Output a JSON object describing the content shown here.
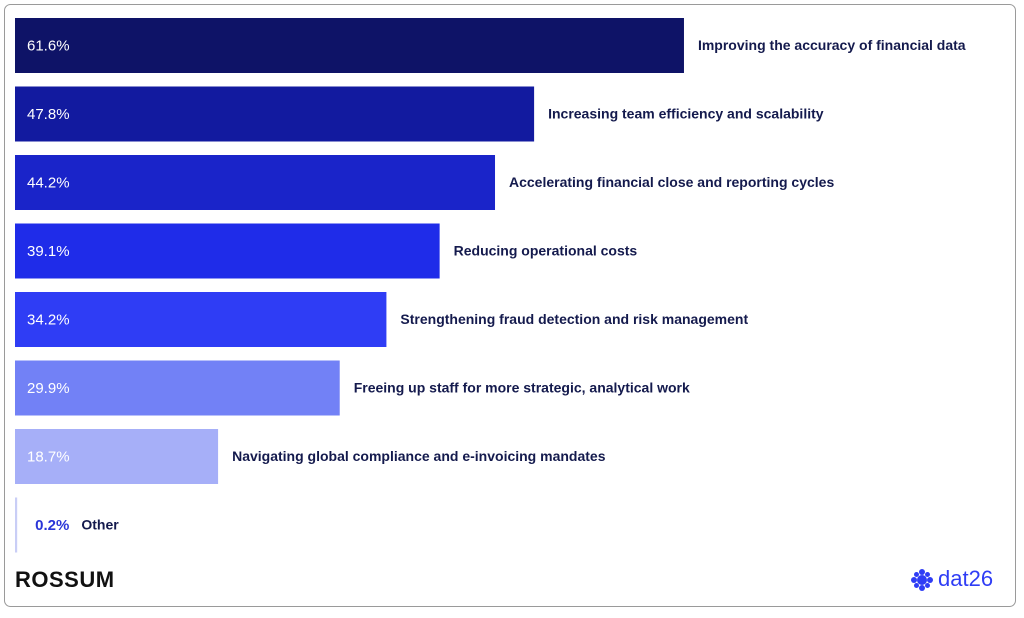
{
  "chart_data": {
    "type": "bar",
    "orientation": "horizontal",
    "categories": [
      "Improving the accuracy of financial data",
      "Increasing team efficiency and scalability",
      "Accelerating financial close and reporting cycles",
      "Reducing operational costs",
      "Strengthening fraud detection and risk management",
      "Freeing up staff for more strategic, analytical work",
      "Navigating global compliance and e-invoicing mandates",
      "Other"
    ],
    "values": [
      61.6,
      47.8,
      44.2,
      39.1,
      34.2,
      29.9,
      18.7,
      0.2
    ],
    "value_labels": [
      "61.6%",
      "47.8%",
      "44.2%",
      "39.1%",
      "34.2%",
      "29.9%",
      "18.7%",
      "0.2%"
    ],
    "colors": [
      "#0e1367",
      "#121a9f",
      "#1a24c9",
      "#1f2ce9",
      "#2f3df5",
      "#7281f6",
      "#a6aff8",
      "#c9cef6"
    ]
  },
  "footer": {
    "left_logo": "ROSSUM",
    "right_logo": "dat26"
  }
}
